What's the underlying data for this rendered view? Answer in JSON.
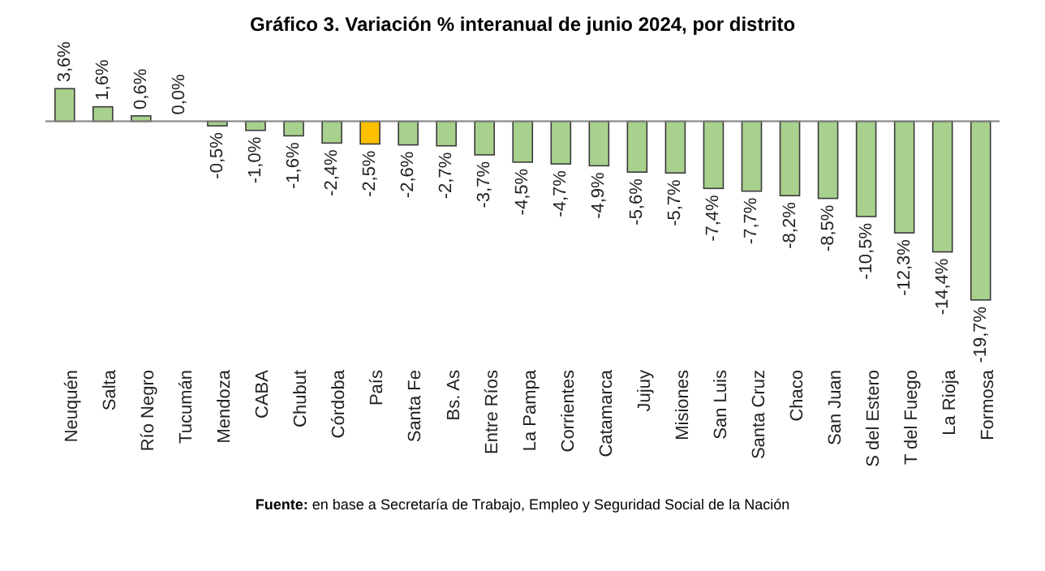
{
  "chart_data": {
    "type": "bar",
    "title": "Gráfico 3. Variación % interanual de junio 2024, por distrito",
    "categories": [
      "Neuquén",
      "Salta",
      "Río Negro",
      "Tucumán",
      "Mendoza",
      "CABA",
      "Chubut",
      "Córdoba",
      "País",
      "Santa Fe",
      "Bs. As",
      "Entre Ríos",
      "La Pampa",
      "Corrientes",
      "Catamarca",
      "Jujuy",
      "Misiones",
      "San Luis",
      "Santa Cruz",
      "Chaco",
      "San Juan",
      "S del Estero",
      "T del Fuego",
      "La Rioja",
      "Formosa"
    ],
    "values": [
      3.6,
      1.6,
      0.6,
      0.0,
      -0.5,
      -1.0,
      -1.6,
      -2.4,
      -2.5,
      -2.6,
      -2.7,
      -3.7,
      -4.5,
      -4.7,
      -4.9,
      -5.6,
      -5.7,
      -7.4,
      -7.7,
      -8.2,
      -8.5,
      -10.5,
      -12.3,
      -14.4,
      -19.7
    ],
    "colors": [
      "#a9d18e",
      "#a9d18e",
      "#a9d18e",
      "#a9d18e",
      "#a9d18e",
      "#a9d18e",
      "#a9d18e",
      "#a9d18e",
      "#ffc000",
      "#a9d18e",
      "#a9d18e",
      "#a9d18e",
      "#a9d18e",
      "#a9d18e",
      "#a9d18e",
      "#a9d18e",
      "#a9d18e",
      "#a9d18e",
      "#a9d18e",
      "#a9d18e",
      "#a9d18e",
      "#a9d18e",
      "#a9d18e",
      "#a9d18e",
      "#a9d18e"
    ],
    "value_labels": [
      "3,6%",
      "1,6%",
      "0,6%",
      "0,0%",
      "-0,5%",
      "-1,0%",
      "-1,6%",
      "-2,4%",
      "-2,5%",
      "-2,6%",
      "-2,7%",
      "-3,7%",
      "-4,5%",
      "-4,7%",
      "-4,9%",
      "-5,6%",
      "-5,7%",
      "-7,4%",
      "-7,7%",
      "-8,2%",
      "-8,5%",
      "-10,5%",
      "-12,3%",
      "-14,4%",
      "-19,7%"
    ],
    "ref_lines": [
      {
        "axis": "y",
        "value": 0,
        "color": "#7f7f7f"
      }
    ],
    "tick_labels": "x",
    "grid": false,
    "legend": false,
    "annotations": [
      "Fuente: en base a Secretaría de Trabajo, Empleo y Seguridad Social de la Nación"
    ]
  }
}
